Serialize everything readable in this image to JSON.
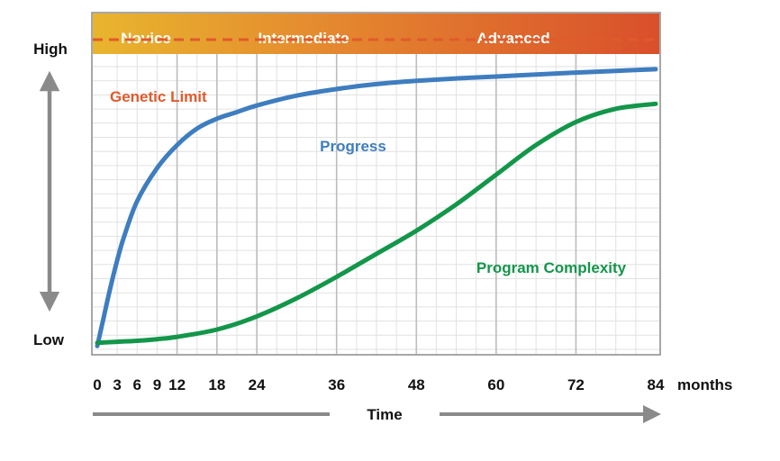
{
  "chart_data": {
    "type": "line",
    "title": "",
    "x_unit": "months",
    "xlabel": "Time",
    "ylabel_high": "High",
    "ylabel_low": "Low",
    "xlim": [
      0,
      84
    ],
    "x_ticks": [
      0,
      3,
      6,
      9,
      12,
      18,
      24,
      36,
      48,
      60,
      72,
      84
    ],
    "phases": [
      {
        "name": "Novice",
        "start": 0,
        "end": 12
      },
      {
        "name": "Intermediate",
        "start": 12,
        "end": 48
      },
      {
        "name": "Advanced",
        "start": 48,
        "end": 84
      }
    ],
    "limit": {
      "name": "Genetic Limit",
      "value": 0.94,
      "color": "#e05a2b"
    },
    "ylim": [
      0,
      1
    ],
    "series": [
      {
        "name": "Progress",
        "color": "#3e7dbf",
        "x": [
          0,
          1,
          2,
          3,
          4,
          6,
          9,
          12,
          15,
          18,
          21,
          24,
          30,
          36,
          42,
          48,
          54,
          60,
          66,
          72,
          78,
          84
        ],
        "values": [
          0.01,
          0.1,
          0.19,
          0.27,
          0.34,
          0.45,
          0.55,
          0.62,
          0.67,
          0.7,
          0.72,
          0.74,
          0.77,
          0.79,
          0.805,
          0.815,
          0.822,
          0.828,
          0.834,
          0.84,
          0.845,
          0.85
        ]
      },
      {
        "name": "Program Complexity",
        "color": "#13964a",
        "x": [
          0,
          3,
          6,
          9,
          12,
          18,
          24,
          30,
          36,
          42,
          48,
          54,
          60,
          66,
          72,
          78,
          84
        ],
        "values": [
          0.02,
          0.023,
          0.026,
          0.031,
          0.038,
          0.06,
          0.1,
          0.155,
          0.22,
          0.29,
          0.36,
          0.44,
          0.53,
          0.62,
          0.69,
          0.73,
          0.745
        ]
      }
    ],
    "band_colors": [
      "#e8b52e",
      "#e4852f",
      "#d94f2b"
    ]
  }
}
